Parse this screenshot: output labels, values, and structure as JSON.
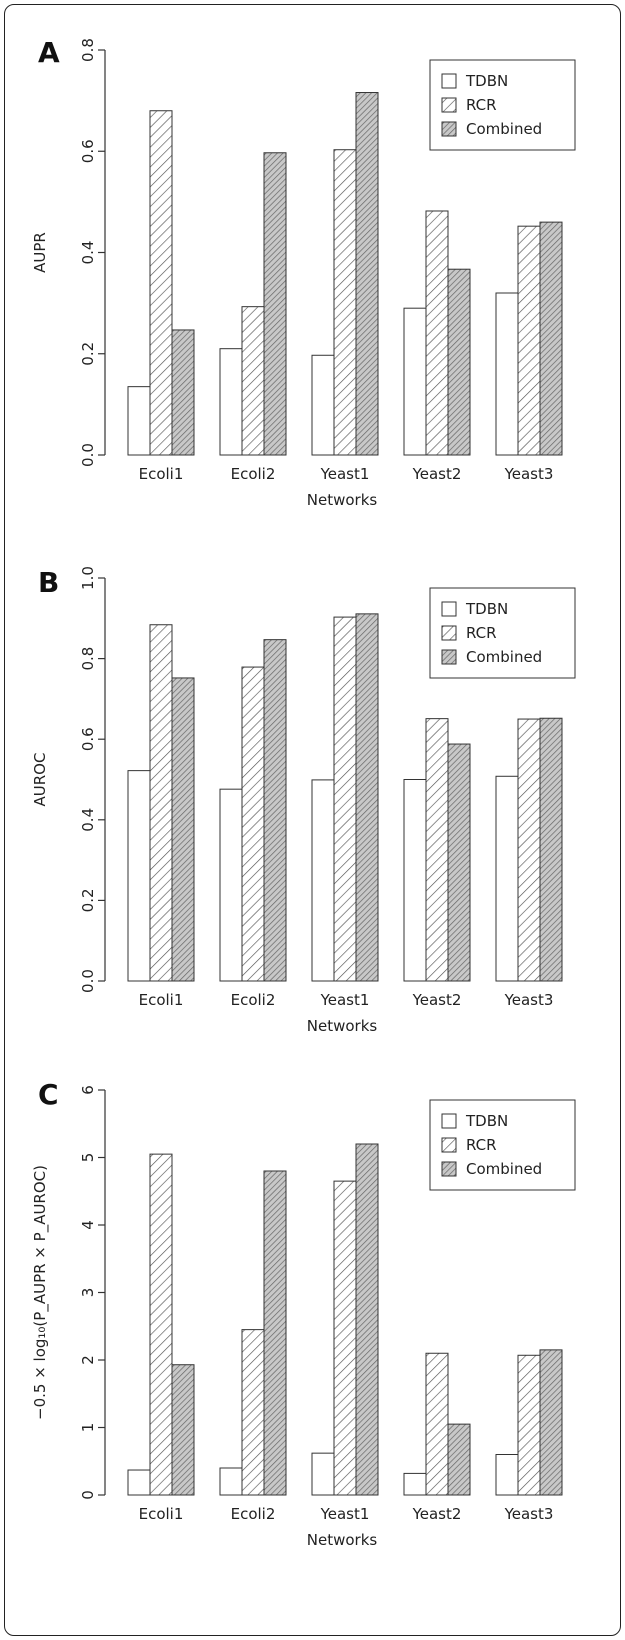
{
  "colors": {
    "axis": "#333333",
    "bar_stroke": "#333333",
    "hatch_line": "#555555",
    "dense_fill": "#c8c8c8"
  },
  "legend_patterns": [
    "empty",
    "hatch",
    "dense-hatch"
  ],
  "chart_data": [
    {
      "panel": "A",
      "type": "bar",
      "categories": [
        "Ecoli1",
        "Ecoli2",
        "Yeast1",
        "Yeast2",
        "Yeast3"
      ],
      "series": [
        {
          "name": "TDBN",
          "values": [
            0.135,
            0.21,
            0.197,
            0.29,
            0.32
          ]
        },
        {
          "name": "RCR",
          "values": [
            0.68,
            0.293,
            0.603,
            0.482,
            0.452
          ]
        },
        {
          "name": "Combined",
          "values": [
            0.247,
            0.597,
            0.716,
            0.367,
            0.46
          ]
        }
      ],
      "xlabel": "Networks",
      "ylabel": "AUPR",
      "ylim": [
        0,
        0.8
      ],
      "yticks": [
        "0.0",
        "0.2",
        "0.4",
        "0.6",
        "0.8"
      ],
      "grid": false,
      "legend_position": "top-right"
    },
    {
      "panel": "B",
      "type": "bar",
      "categories": [
        "Ecoli1",
        "Ecoli2",
        "Yeast1",
        "Yeast2",
        "Yeast3"
      ],
      "series": [
        {
          "name": "TDBN",
          "values": [
            0.522,
            0.476,
            0.499,
            0.5,
            0.508
          ]
        },
        {
          "name": "RCR",
          "values": [
            0.884,
            0.779,
            0.903,
            0.651,
            0.65
          ]
        },
        {
          "name": "Combined",
          "values": [
            0.752,
            0.847,
            0.911,
            0.588,
            0.652
          ]
        }
      ],
      "xlabel": "Networks",
      "ylabel": "AUROC",
      "ylim": [
        0,
        1.0
      ],
      "yticks": [
        "0.0",
        "0.2",
        "0.4",
        "0.6",
        "0.8",
        "1.0"
      ],
      "grid": false,
      "legend_position": "top-right"
    },
    {
      "panel": "C",
      "type": "bar",
      "categories": [
        "Ecoli1",
        "Ecoli2",
        "Yeast1",
        "Yeast2",
        "Yeast3"
      ],
      "series": [
        {
          "name": "TDBN",
          "values": [
            0.37,
            0.4,
            0.62,
            0.32,
            0.6
          ]
        },
        {
          "name": "RCR",
          "values": [
            5.05,
            2.45,
            4.65,
            2.1,
            2.07
          ]
        },
        {
          "name": "Combined",
          "values": [
            1.93,
            4.8,
            5.2,
            1.05,
            2.15
          ]
        }
      ],
      "xlabel": "Networks",
      "ylabel": "−0.5 × log₁₀(P_AUPR × P_AUROC)",
      "ylim": [
        0,
        6
      ],
      "yticks": [
        "0",
        "1",
        "2",
        "3",
        "4",
        "5",
        "6"
      ],
      "grid": false,
      "legend_position": "top-right"
    }
  ]
}
